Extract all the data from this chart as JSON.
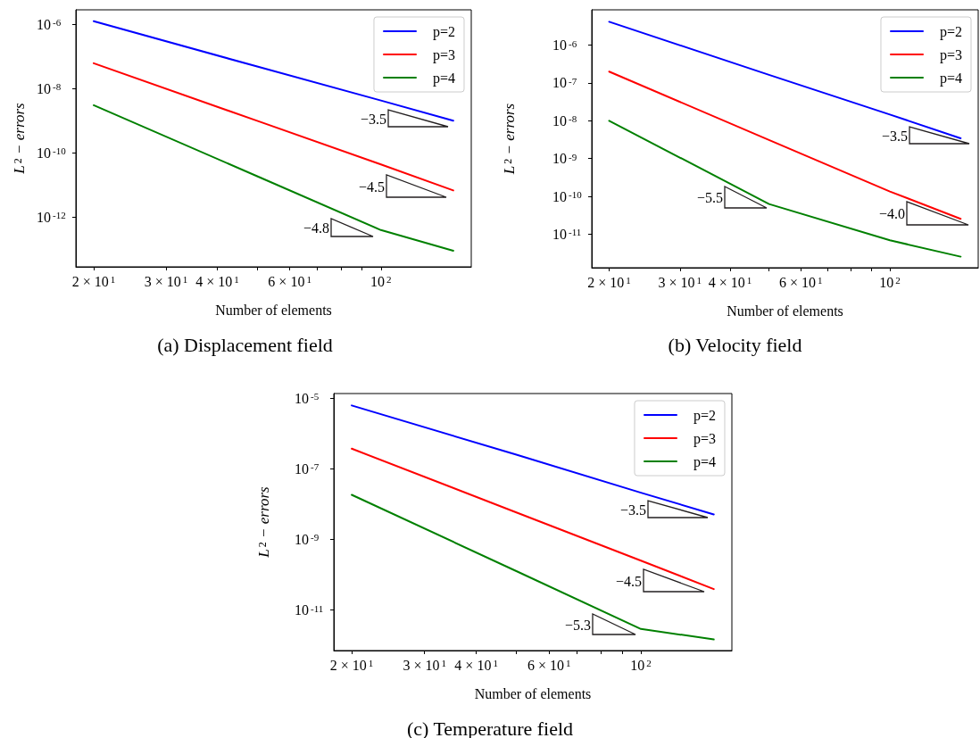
{
  "chart_data": [
    {
      "type": "line",
      "title": "(a) Displacement field",
      "xlabel": "Number of elements",
      "ylabel": "L$^{2}$ − errors",
      "log": "xy",
      "legend": "top right",
      "marker": "none",
      "line_style": "solid",
      "x": [
        20,
        50,
        100,
        150
      ],
      "series": [
        {
          "name": "p=2",
          "color": "#0000ff",
          "values": [
            1.24e-06,
            4.8e-08,
            4.2e-09,
            9.9e-10
          ]
        },
        {
          "name": "p=3",
          "color": "#ff0000",
          "values": [
            6.1e-08,
            9.8e-10,
            4.3e-11,
            6.7e-12
          ]
        },
        {
          "name": "p=4",
          "color": "#008000",
          "values": [
            3e-09,
            1.85e-11,
            3.9e-13,
            8.9e-14
          ]
        }
      ],
      "xlim": [
        18.1,
        165.9
      ],
      "ylim": [
        2.8e-14,
        2.8e-06
      ],
      "xticks": [
        {
          "value": 20,
          "label": "2 × 10$^{1}$"
        },
        {
          "value": 30,
          "label": "3 × 10$^{1}$"
        },
        {
          "value": 40,
          "label": "4 × 10$^{1}$"
        },
        {
          "value": 50,
          "label": null
        },
        {
          "value": 60,
          "label": "6 × 10$^{1}$"
        },
        {
          "value": 70,
          "label": null
        },
        {
          "value": 80,
          "label": null
        },
        {
          "value": 90,
          "label": null
        },
        {
          "value": 100,
          "label": "10$^{2}$"
        }
      ],
      "yticks": [
        {
          "value": 1e-06,
          "label": "10$^{-6}$"
        },
        {
          "value": 1e-08,
          "label": "10$^{-8}$"
        },
        {
          "value": 1e-10,
          "label": "10$^{-10}$"
        },
        {
          "value": 1e-12,
          "label": "10$^{-12}$"
        }
      ],
      "annotations": [
        "−3.5",
        "−4.5",
        "−4.8"
      ]
    },
    {
      "type": "line",
      "title": "(b) Velocity field",
      "xlabel": "Number of elements",
      "ylabel": "L$^{2}$ − errors",
      "log": "xy",
      "legend": "top right",
      "marker": "none",
      "line_style": "solid",
      "x": [
        20,
        50,
        100,
        150
      ],
      "series": [
        {
          "name": "p=2",
          "color": "#0000ff",
          "values": [
            4.15e-06,
            1.64e-07,
            1.46e-08,
            3.44e-09
          ]
        },
        {
          "name": "p=3",
          "color": "#ff0000",
          "values": [
            2e-07,
            3.1e-09,
            1.35e-10,
            2.55e-11
          ]
        },
        {
          "name": "p=4",
          "color": "#008000",
          "values": [
            1e-08,
            6.3e-11,
            6.9e-12,
            2.55e-12
          ]
        }
      ],
      "xlim": [
        18.1,
        165.9
      ],
      "ylim": [
        1.3e-12,
        8.6e-06
      ],
      "xticks": [
        {
          "value": 20,
          "label": "2 × 10$^{1}$"
        },
        {
          "value": 30,
          "label": "3 × 10$^{1}$"
        },
        {
          "value": 40,
          "label": "4 × 10$^{1}$"
        },
        {
          "value": 50,
          "label": null
        },
        {
          "value": 60,
          "label": "6 × 10$^{1}$"
        },
        {
          "value": 70,
          "label": null
        },
        {
          "value": 80,
          "label": null
        },
        {
          "value": 90,
          "label": null
        },
        {
          "value": 100,
          "label": "10$^{2}$"
        }
      ],
      "yticks": [
        {
          "value": 1e-06,
          "label": "10$^{-6}$"
        },
        {
          "value": 1e-07,
          "label": "10$^{-7}$"
        },
        {
          "value": 1e-08,
          "label": "10$^{-8}$"
        },
        {
          "value": 1e-09,
          "label": "10$^{-9}$"
        },
        {
          "value": 1e-10,
          "label": "10$^{-10}$"
        },
        {
          "value": 1e-11,
          "label": "10$^{-11}$"
        }
      ],
      "annotations": [
        "−3.5",
        "−5.5",
        "−4.0"
      ]
    },
    {
      "type": "line",
      "title": "(c) Temperature field",
      "xlabel": "Number of elements",
      "ylabel": "L$^{2}$ − errors",
      "log": "xy",
      "legend": "top right",
      "marker": "none",
      "line_style": "solid",
      "x": [
        20,
        50,
        100,
        150
      ],
      "series": [
        {
          "name": "p=2",
          "color": "#0000ff",
          "values": [
            6.2e-06,
            2.5e-07,
            2.1e-08,
            5.1e-09
          ]
        },
        {
          "name": "p=3",
          "color": "#ff0000",
          "values": [
            3.7e-07,
            5.8e-09,
            2.5e-10,
            3.9e-11
          ]
        },
        {
          "name": "p=4",
          "color": "#008000",
          "values": [
            1.83e-08,
            1.26e-10,
            2.9e-12,
            1.47e-12
          ]
        }
      ],
      "xlim": [
        18.1,
        165.9
      ],
      "ylim": [
        7.1e-13,
        1.35e-05
      ],
      "xticks": [
        {
          "value": 20,
          "label": "2 × 10$^{1}$"
        },
        {
          "value": 30,
          "label": "3 × 10$^{1}$"
        },
        {
          "value": 40,
          "label": "4 × 10$^{1}$"
        },
        {
          "value": 50,
          "label": null
        },
        {
          "value": 60,
          "label": "6 × 10$^{1}$"
        },
        {
          "value": 70,
          "label": null
        },
        {
          "value": 80,
          "label": null
        },
        {
          "value": 90,
          "label": null
        },
        {
          "value": 100,
          "label": "10$^{2}$"
        }
      ],
      "yticks": [
        {
          "value": 1e-05,
          "label": "10$^{-5}$"
        },
        {
          "value": 1e-07,
          "label": "10$^{-7}$"
        },
        {
          "value": 1e-09,
          "label": "10$^{-9}$"
        },
        {
          "value": 1e-11,
          "label": "10$^{-11}$"
        }
      ],
      "annotations": [
        "−3.5",
        "−4.5",
        "−5.3"
      ]
    }
  ]
}
